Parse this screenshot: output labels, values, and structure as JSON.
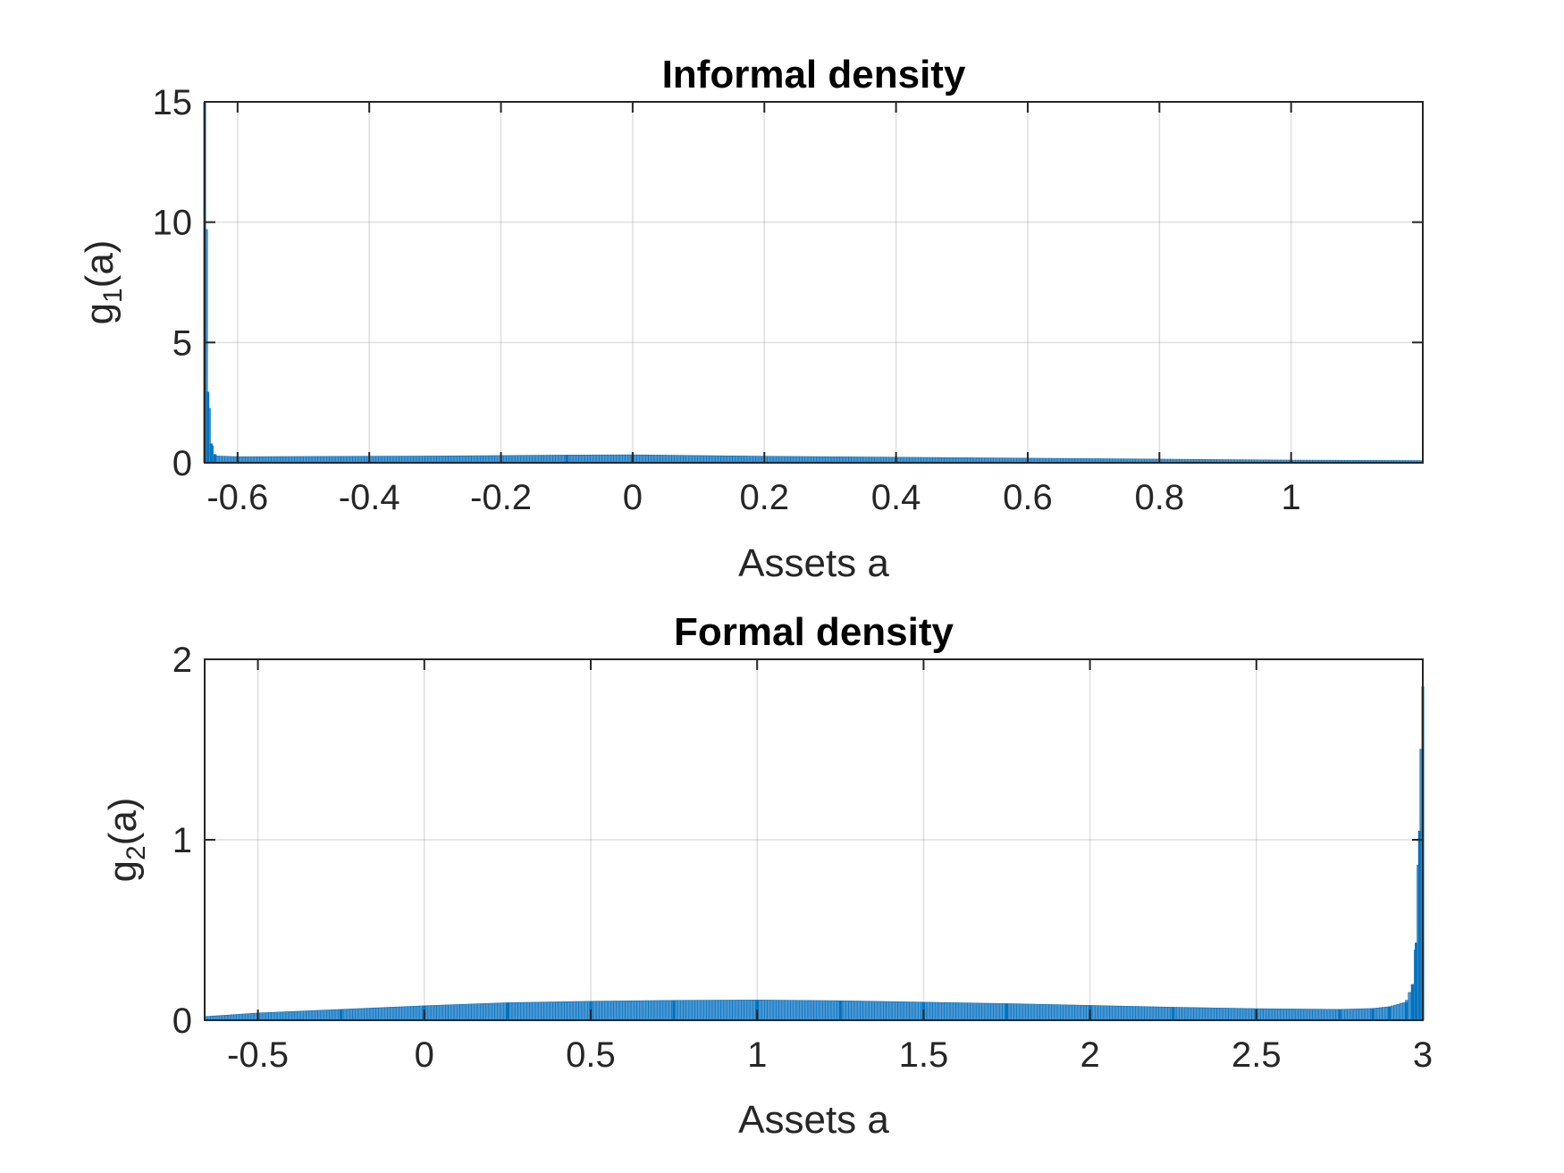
{
  "chart_data": [
    {
      "type": "bar",
      "title": "Informal density",
      "xlabel": "Assets a",
      "ylabel_main": "g",
      "ylabel_sub": "1",
      "ylabel_tail": "(a)",
      "xlim": [
        -0.65,
        1.2
      ],
      "ylim": [
        0,
        15
      ],
      "xticks": [
        -0.6,
        -0.4,
        -0.2,
        0,
        0.2,
        0.4,
        0.6,
        0.8,
        1
      ],
      "xtick_labels": [
        "-0.6",
        "-0.4",
        "-0.2",
        "0",
        "0.2",
        "0.4",
        "0.6",
        "0.8",
        "1"
      ],
      "yticks": [
        0,
        5,
        10,
        15
      ],
      "ytick_labels": [
        "0",
        "5",
        "10",
        "15"
      ],
      "grid": true,
      "color": "#0072BD",
      "series": [
        {
          "x": [
            -0.65,
            -0.645,
            -0.64,
            -0.635,
            -0.63,
            -0.6,
            -0.5,
            -0.4,
            -0.3,
            -0.2,
            -0.1,
            0,
            0.1,
            0.2,
            0.3,
            0.4,
            0.5,
            0.6,
            0.7,
            0.8,
            0.9,
            1.0,
            1.1,
            1.2
          ],
          "values": [
            15,
            2.95,
            0.8,
            0.35,
            0.28,
            0.25,
            0.26,
            0.27,
            0.28,
            0.3,
            0.32,
            0.33,
            0.3,
            0.27,
            0.25,
            0.23,
            0.21,
            0.19,
            0.17,
            0.15,
            0.13,
            0.11,
            0.1,
            0.09
          ]
        }
      ]
    },
    {
      "type": "bar",
      "title": "Formal density",
      "xlabel": "Assets a",
      "ylabel_main": "g",
      "ylabel_sub": "2",
      "ylabel_tail": "(a)",
      "xlim": [
        -0.66,
        3
      ],
      "ylim": [
        0,
        2
      ],
      "xticks": [
        -0.5,
        0,
        0.5,
        1,
        1.5,
        2,
        2.5,
        3
      ],
      "xtick_labels": [
        "-0.5",
        "0",
        "0.5",
        "1",
        "1.5",
        "2",
        "2.5",
        "3"
      ],
      "yticks": [
        0,
        1,
        2
      ],
      "ytick_labels": [
        "0",
        "1",
        "2"
      ],
      "grid": true,
      "color": "#0072BD",
      "series": [
        {
          "x": [
            -0.66,
            -0.5,
            -0.25,
            0,
            0.25,
            0.5,
            0.75,
            1.0,
            1.25,
            1.5,
            1.75,
            2.0,
            2.25,
            2.5,
            2.75,
            2.85,
            2.9,
            2.95,
            2.97,
            2.98,
            2.99,
            3.0
          ],
          "values": [
            0.02,
            0.04,
            0.06,
            0.08,
            0.097,
            0.105,
            0.11,
            0.112,
            0.108,
            0.1,
            0.092,
            0.082,
            0.072,
            0.064,
            0.06,
            0.065,
            0.075,
            0.1,
            0.2,
            0.43,
            1.05,
            1.85
          ]
        }
      ]
    }
  ]
}
